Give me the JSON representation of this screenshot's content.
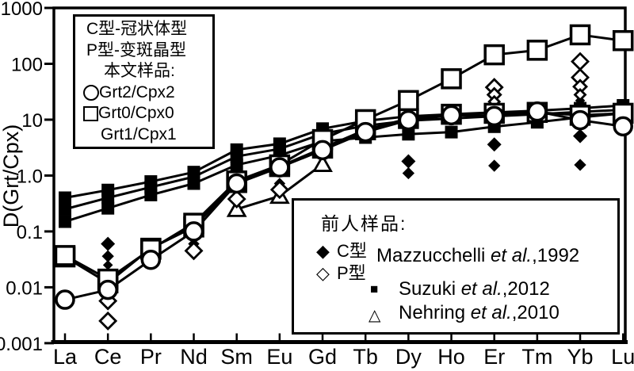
{
  "page": {
    "background": "#ffffff",
    "ink": "#000000"
  },
  "chart_data": {
    "type": "line",
    "title": "",
    "xlabel": "",
    "ylabel": "D(Grt/Cpx)",
    "grid": false,
    "x_categories": [
      "La",
      "Ce",
      "Pr",
      "Nd",
      "Sm",
      "Eu",
      "Gd",
      "Tb",
      "Dy",
      "Ho",
      "Er",
      "Tm",
      "Yb",
      "Lu"
    ],
    "y_axis": {
      "scale": "log",
      "min": 0.001,
      "max": 1000,
      "tick_labels": [
        "1000",
        "100",
        "10",
        "1.0",
        "0.1",
        "0.01",
        "0.001"
      ],
      "tick_values": [
        1000,
        100,
        10,
        1,
        0.1,
        0.01,
        0.001
      ]
    },
    "series": [
      {
        "name": "Suzuki et al.,2012 line 1",
        "marker": "square-filled",
        "line": true,
        "values": [
          0.4,
          0.55,
          0.78,
          1.15,
          2.9,
          3.7,
          6.9,
          9.5,
          11.5,
          12.5,
          13.5,
          14.5,
          16,
          18
        ]
      },
      {
        "name": "Suzuki et al.,2012 line 2",
        "marker": "square-filled",
        "line": true,
        "values": [
          0.25,
          0.4,
          0.62,
          0.95,
          2.2,
          3.0,
          5.6,
          7.8,
          9.6,
          10.5,
          11.5,
          12.5,
          13.8,
          15
        ]
      },
      {
        "name": "Suzuki et al.,2012 line 3",
        "marker": "square-filled",
        "line": true,
        "values": [
          0.15,
          0.26,
          0.45,
          0.72,
          1.55,
          2.3,
          4.1,
          4.8,
          5.5,
          6.0,
          7.5,
          9.0,
          11,
          13
        ]
      },
      {
        "name": "Nehring et al.,2010",
        "marker": "triangle-open",
        "line": true,
        "values": [
          null,
          null,
          null,
          null,
          0.25,
          0.43,
          1.6,
          null,
          null,
          null,
          null,
          null,
          null,
          null
        ]
      },
      {
        "name": "Grt1/Cpx1",
        "marker": "square-open",
        "line": true,
        "values": [
          0.035,
          0.012,
          0.05,
          0.12,
          0.75,
          1.45,
          3.1,
          6.6,
          10.5,
          12.5,
          13,
          13.5,
          12,
          13
        ]
      },
      {
        "name": "Grt0/Cpx0",
        "marker": "square-open",
        "line": true,
        "values": [
          0.037,
          0.014,
          0.048,
          0.14,
          0.8,
          1.55,
          4.4,
          10,
          22,
          54,
          145,
          175,
          330,
          260
        ]
      },
      {
        "name": "Grt2/Cpx2",
        "marker": "circle-open",
        "line": true,
        "values": [
          0.006,
          0.009,
          0.031,
          0.1,
          0.72,
          1.4,
          2.85,
          6.0,
          9.8,
          12,
          11.6,
          14,
          9.8,
          7.6
        ]
      }
    ],
    "scatter": [
      {
        "name": "Mazzucchelli et al.,1992 C型",
        "marker": "diamond-filled",
        "points": [
          [
            "Ce",
            0.06
          ],
          [
            "Ce",
            0.036,
            0.85
          ],
          [
            "Ce",
            0.025,
            0.7
          ],
          [
            "Nd",
            0.06,
            0.8
          ],
          [
            "Eu",
            0.72,
            0.8
          ],
          [
            "Dy",
            1.8
          ],
          [
            "Dy",
            1.1,
            0.85
          ],
          [
            "Er",
            19,
            0.7
          ],
          [
            "Er",
            3.6
          ],
          [
            "Er",
            1.5,
            0.85
          ],
          [
            "Yb",
            22,
            0.7
          ],
          [
            "Yb",
            5.1
          ],
          [
            "Yb",
            1.55,
            0.85
          ]
        ]
      },
      {
        "name": "Mazzucchelli et al.,1992 P型",
        "marker": "diamond-open",
        "points": [
          [
            "Ce",
            0.0057
          ],
          [
            "Ce",
            0.0025
          ],
          [
            "Nd",
            0.045
          ],
          [
            "Sm",
            0.38
          ],
          [
            "Eu",
            0.56
          ],
          [
            "Er",
            38
          ],
          [
            "Er",
            28,
            0.8
          ],
          [
            "Er",
            21,
            0.65
          ],
          [
            "Yb",
            110
          ],
          [
            "Yb",
            57
          ],
          [
            "Yb",
            39,
            0.8
          ],
          [
            "Yb",
            28,
            0.65
          ]
        ]
      }
    ],
    "legend_position": [
      "top-left",
      "bottom-right"
    ]
  },
  "legend_samples": {
    "type_note_c": "C型-冠状体型",
    "type_note_p": "P型-变斑晶型",
    "heading": "本文样品:",
    "entries": [
      {
        "marker": "circle-open",
        "label": "Grt2/Cpx2"
      },
      {
        "marker": "square-open",
        "label": "Grt0/Cpx0"
      },
      {
        "marker": "none",
        "label": "Grt1/Cpx1"
      }
    ]
  },
  "legend_previous": {
    "heading": "前人样品:",
    "c_label": "C型",
    "p_label": "P型",
    "mazzucchelli": {
      "pre": "Mazzucchelli ",
      "italic": "et al.",
      "post": ",1992"
    },
    "suzuki": {
      "pre": "Suzuki ",
      "italic": "et al.",
      "post": ",2012"
    },
    "nehring": {
      "pre": "Nehring ",
      "italic": "et al.",
      "post": ",2010"
    },
    "markers": {
      "c": "◆",
      "p": "◇",
      "suzuki": "■",
      "nehring": "△"
    }
  }
}
